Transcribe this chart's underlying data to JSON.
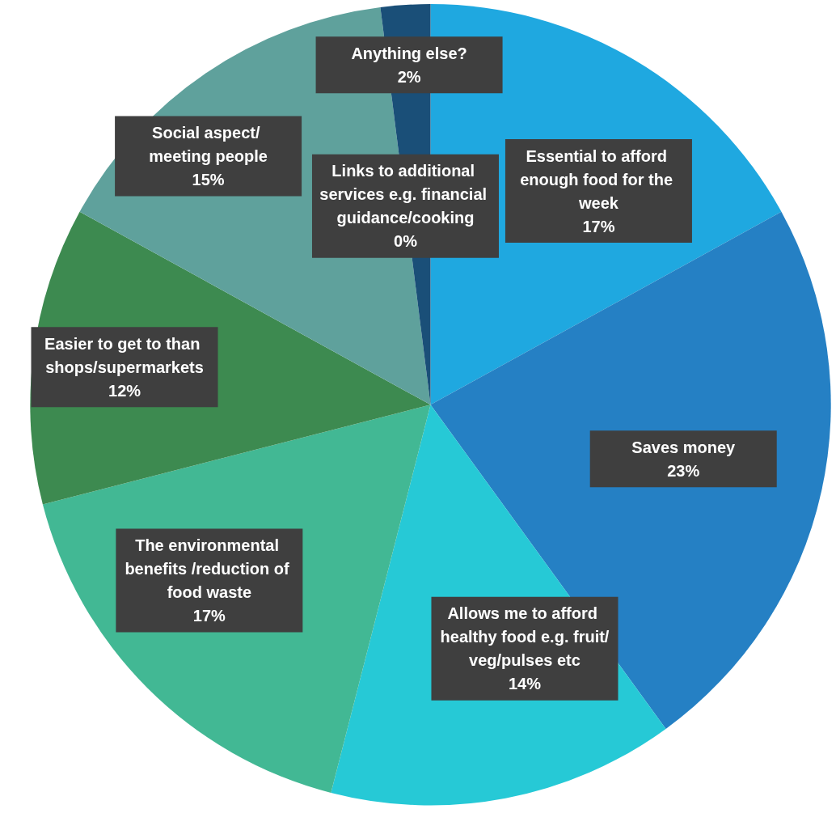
{
  "chart_data": {
    "type": "pie",
    "categories": [
      "Essential to afford enough food for the week",
      "Saves money",
      "Allows me to afford healthy food e.g. fruit/veg/pulses etc",
      "The environmental benefits /reduction of food waste",
      "Easier to get to than shops/supermarkets",
      "Social aspect/ meeting people",
      "Links to additional services e.g. financial guidance/cooking",
      "Anything else?"
    ],
    "values": [
      17,
      23,
      14,
      17,
      12,
      15,
      0,
      2
    ],
    "value_labels": [
      "17%",
      "23%",
      "14%",
      "17%",
      "12%",
      "15%",
      "0%",
      "2%"
    ],
    "colors": [
      "#1fa8e0",
      "#2580c4",
      "#26c9d6",
      "#42b894",
      "#3d8a50",
      "#5fa19c",
      "#2a6e9e",
      "#1a4f78"
    ],
    "legend": false
  }
}
